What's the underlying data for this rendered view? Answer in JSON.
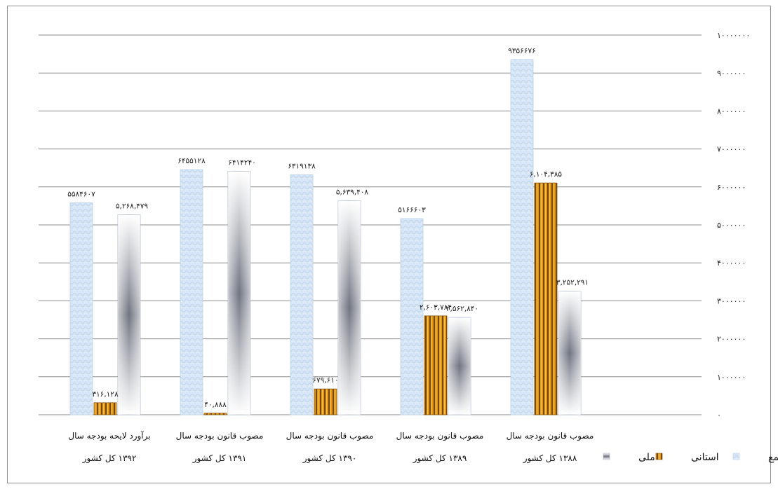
{
  "chart_data": {
    "type": "bar",
    "ylim": [
      0,
      10000000
    ],
    "y_ticks": [
      "۰",
      "۱۰۰۰۰۰۰",
      "۲۰۰۰۰۰۰",
      "۳۰۰۰۰۰۰",
      "۴۰۰۰۰۰۰",
      "۵۰۰۰۰۰۰",
      "۶۰۰۰۰۰۰",
      "۷۰۰۰۰۰۰",
      "۸۰۰۰۰۰۰",
      "۹۰۰۰۰۰۰",
      "۱۰۰۰۰۰۰۰"
    ],
    "grid": true,
    "y_axis_side": "right",
    "legend_position": "bottom-right",
    "categories": [
      {
        "line1": "مصوب قانون بودجه سال",
        "line2": "۱۳۸۸ کل کشور"
      },
      {
        "line1": "مصوب قانون بودجه سال",
        "line2": "۱۳۸۹ کل کشور"
      },
      {
        "line1": "مصوب قانون بودجه سال",
        "line2": "۱۳۹۰ کل کشور"
      },
      {
        "line1": "مصوب قانون بودجه سال",
        "line2": "۱۳۹۱ کل کشور"
      },
      {
        "line1": "برآورد لایحه بودجه سال",
        "line2": "۱۳۹۲ کل کشور"
      }
    ],
    "series": [
      {
        "name": "جمع",
        "color": "#c9ddf2",
        "values": [
          9356676,
          5166603,
          6319138,
          6455128,
          5584607
        ],
        "labels": [
          "۹۳۵۶۶۷۶",
          "۵۱۶۶۶۰۳",
          "۶۳۱۹۱۳۸",
          "۶۴۵۵۱۲۸",
          "۵۵۸۴۶۰۷"
        ]
      },
      {
        "name": "استانی",
        "color": "#c7800e",
        "values": [
          6104385,
          2603784,
          679610,
          40888,
          316128
        ],
        "labels": [
          "۶,۱۰۴,۳۸۵",
          "۲,۶۰۳,۷۸۴",
          "۶۷۹,۶۱۰",
          "۴۰,۸۸۸",
          "۳۱۶,۱۲۸"
        ]
      },
      {
        "name": "ملی",
        "color": "#8a8f9a",
        "values": [
          3252291,
          2562840,
          5639408,
          6414240,
          5268479
        ],
        "labels": [
          "۳,۲۵۲,۲۹۱",
          "۲,۵۶۲,۸۴۰",
          "۵,۶۳۹,۴۰۸",
          "۶۴۱۴۲۴۰",
          "۵,۲۶۸,۴۷۹"
        ]
      }
    ]
  }
}
